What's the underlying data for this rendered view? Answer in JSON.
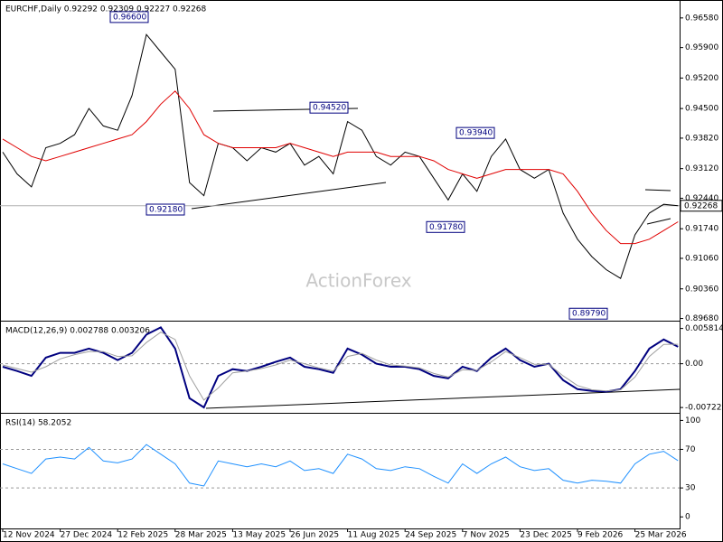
{
  "chart_data": [
    {
      "type": "line",
      "title": "EURCHF,Daily 0.92292 0.92309 0.92227 0.92268",
      "watermark": "ActionForex",
      "series": [
        {
          "color": "#000000",
          "values": [
            0.935,
            0.93,
            0.927,
            0.936,
            0.937,
            0.939,
            0.945,
            0.941,
            0.94,
            0.948,
            0.962,
            0.958,
            0.954,
            0.928,
            0.925,
            0.937,
            0.936,
            0.933,
            0.936,
            0.935,
            0.937,
            0.932,
            0.934,
            0.93,
            0.942,
            0.94,
            0.934,
            0.932,
            0.935,
            0.934,
            0.929,
            0.924,
            0.93,
            0.926,
            0.934,
            0.938,
            0.931,
            0.929,
            0.931,
            0.921,
            0.915,
            0.911,
            0.908,
            0.906,
            0.916,
            0.921,
            0.923,
            0.92268
          ]
        },
        {
          "color": "#e00000",
          "values": [
            0.938,
            0.936,
            0.934,
            0.933,
            0.934,
            0.935,
            0.936,
            0.937,
            0.938,
            0.939,
            0.942,
            0.946,
            0.949,
            0.945,
            0.939,
            0.937,
            0.936,
            0.936,
            0.936,
            0.936,
            0.937,
            0.936,
            0.935,
            0.934,
            0.935,
            0.935,
            0.935,
            0.934,
            0.934,
            0.934,
            0.933,
            0.931,
            0.93,
            0.929,
            0.93,
            0.931,
            0.931,
            0.931,
            0.931,
            0.93,
            0.926,
            0.921,
            0.917,
            0.914,
            0.914,
            0.915,
            0.917,
            0.919
          ]
        }
      ],
      "last_price": {
        "value": 0.92268,
        "label": "0.92268"
      },
      "annotations": [
        {
          "value": 0.966,
          "label": "0.96600"
        },
        {
          "value": 0.9218,
          "label": "0.92180"
        },
        {
          "value": 0.9452,
          "label": "0.94520"
        },
        {
          "value": 0.9394,
          "label": "0.93940"
        },
        {
          "value": 0.9178,
          "label": "0.91780"
        },
        {
          "value": 0.8979,
          "label": "0.89790"
        }
      ],
      "ylim": [
        0.8965,
        0.9695
      ],
      "yticks": [
        {
          "value": 0.9658,
          "label": "0.96580"
        },
        {
          "value": 0.959,
          "label": "0.95900"
        },
        {
          "value": 0.952,
          "label": "0.95200"
        },
        {
          "value": 0.945,
          "label": "0.94500"
        },
        {
          "value": 0.9382,
          "label": "0.93820"
        },
        {
          "value": 0.9312,
          "label": "0.93120"
        },
        {
          "value": 0.9244,
          "label": "0.92440"
        },
        {
          "value": 0.9174,
          "label": "0.91740"
        },
        {
          "value": 0.9106,
          "label": "0.91060"
        },
        {
          "value": 0.9036,
          "label": "0.90360"
        },
        {
          "value": 0.8968,
          "label": "0.89680"
        }
      ]
    },
    {
      "type": "line",
      "title": "MACD(12,26,9) 0.002788 0.003206",
      "series": [
        {
          "color": "#00007f",
          "values": [
            -0.0005,
            -0.0012,
            -0.002,
            0.001,
            0.0018,
            0.0018,
            0.0025,
            0.0018,
            0.0006,
            0.0018,
            0.0048,
            0.006,
            0.0025,
            -0.0057,
            -0.0072,
            -0.002,
            -0.0009,
            -0.0012,
            -0.0005,
            0.0003,
            0.001,
            -0.0005,
            -0.0009,
            -0.0015,
            0.0025,
            0.0015,
            0,
            -0.0005,
            -0.0005,
            -0.0009,
            -0.002,
            -0.0024,
            -0.0005,
            -0.0012,
            0.001,
            0.0025,
            0.0006,
            -0.0005,
            0,
            -0.0027,
            -0.0042,
            -0.0045,
            -0.0046,
            -0.0042,
            -0.0012,
            0.0025,
            0.004,
            0.002788
          ]
        },
        {
          "color": "#a0a0a0",
          "values": [
            -0.0002,
            -0.0008,
            -0.0014,
            -0.0005,
            0.0008,
            0.0015,
            0.002,
            0.002,
            0.0012,
            0.0013,
            0.0035,
            0.0052,
            0.004,
            -0.002,
            -0.006,
            -0.004,
            -0.0015,
            -0.0012,
            -0.0008,
            -0.0002,
            0.0006,
            0,
            -0.0007,
            -0.0012,
            0.0012,
            0.0017,
            0.0006,
            -0.0002,
            -0.0004,
            -0.0007,
            -0.0016,
            -0.0022,
            -0.001,
            -0.0011,
            0.0003,
            0.002,
            0.001,
            -0.0001,
            -0.0001,
            -0.002,
            -0.0036,
            -0.0043,
            -0.0045,
            -0.0043,
            -0.0022,
            0.0012,
            0.0032,
            0.003206
          ]
        }
      ],
      "ylim": [
        -0.0078,
        0.0068
      ],
      "yticks": [
        0.005814,
        {
          "value": 0,
          "label": "0.00"
        },
        -0.007222
      ]
    },
    {
      "type": "line",
      "title": "RSI(14) 58.2052",
      "categories": [
        "12 Nov 2024",
        null,
        null,
        null,
        "27 Dec 2024",
        null,
        null,
        null,
        "12 Feb 2025",
        null,
        null,
        null,
        "28 Mar 2025",
        null,
        null,
        null,
        "13 May 2025",
        null,
        null,
        null,
        "26 Jun 2025",
        null,
        null,
        null,
        "11 Aug 2025",
        null,
        null,
        null,
        "24 Sep 2025",
        null,
        null,
        null,
        "7 Nov 2025",
        null,
        null,
        null,
        "23 Dec 2025",
        null,
        null,
        null,
        "9 Feb 2026",
        null,
        null,
        null,
        "25 Mar 2026",
        null,
        null,
        null
      ],
      "series": [
        {
          "color": "#1e90ff",
          "values": [
            55,
            50,
            45,
            60,
            62,
            60,
            72,
            58,
            56,
            60,
            75,
            65,
            55,
            35,
            32,
            58,
            55,
            52,
            55,
            52,
            58,
            48,
            50,
            45,
            65,
            60,
            50,
            48,
            52,
            50,
            42,
            35,
            55,
            45,
            55,
            62,
            52,
            48,
            50,
            38,
            35,
            38,
            37,
            35,
            55,
            65,
            68,
            58.2052
          ]
        }
      ],
      "ylim": [
        -12,
        106
      ],
      "yticks": [
        100,
        70,
        30,
        0
      ]
    }
  ]
}
